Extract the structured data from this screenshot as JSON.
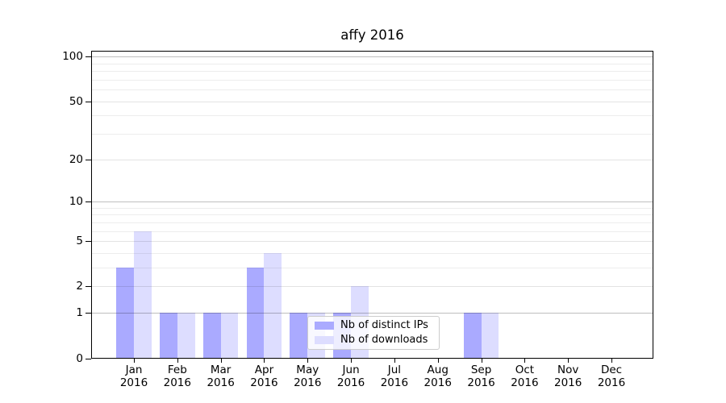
{
  "chart_data": {
    "type": "bar",
    "title": "affy 2016",
    "year": "2016",
    "months": [
      "Jan",
      "Feb",
      "Mar",
      "Apr",
      "May",
      "Jun",
      "Jul",
      "Aug",
      "Sep",
      "Oct",
      "Nov",
      "Dec"
    ],
    "series": [
      {
        "name": "Nb of distinct IPs",
        "color": "#aaaaff",
        "values": [
          3,
          1,
          1,
          3,
          1,
          1,
          0,
          0,
          1,
          0,
          0,
          0
        ]
      },
      {
        "name": "Nb of downloads",
        "color": "#ddddff",
        "values": [
          6,
          1,
          1,
          4,
          1,
          2,
          0,
          0,
          1,
          0,
          0,
          0
        ]
      }
    ],
    "y_axis": {
      "scale": "log2(1+v)",
      "tick_labels": [
        0,
        1,
        2,
        5,
        10,
        20,
        50,
        100
      ],
      "decade_ticks": [
        1,
        10,
        100
      ],
      "mid_ticks": [
        2,
        5,
        20,
        50
      ],
      "minor_gridlines": [
        3,
        4,
        6,
        7,
        8,
        9,
        30,
        40,
        60,
        70,
        80,
        90
      ],
      "ylim": [
        0,
        110
      ]
    },
    "grid": true,
    "legend_position": "lower-center"
  },
  "colors": {
    "grid_decade": "rgba(0,0,0,0.25)",
    "grid_mid": "rgba(0,0,0,0.11)",
    "grid_minor": "rgba(0,0,0,0.07)",
    "axis": "#000000",
    "background": "#ffffff"
  }
}
